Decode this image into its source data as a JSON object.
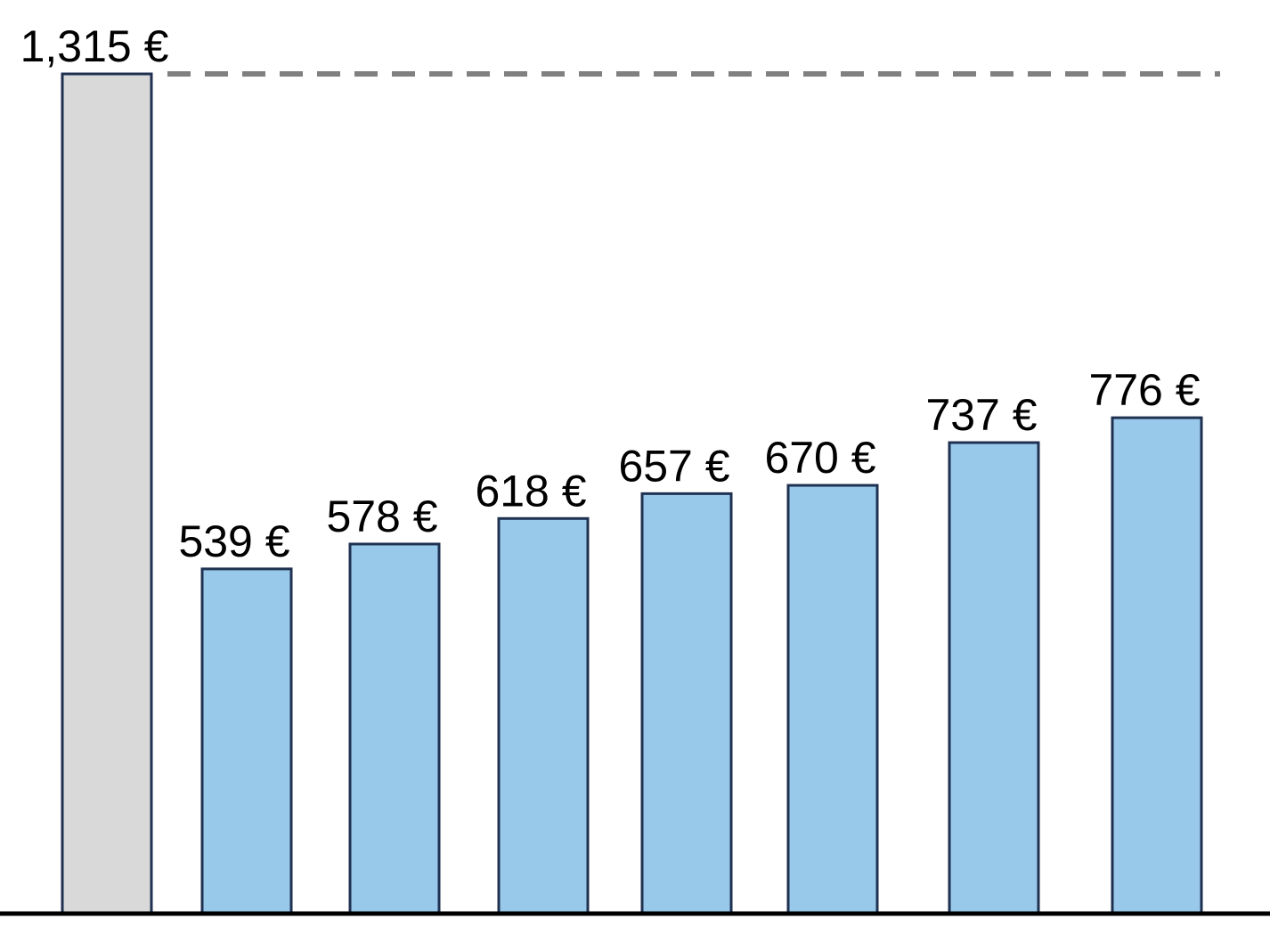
{
  "chart_data": {
    "type": "bar",
    "title": "",
    "xlabel": "",
    "ylabel": "",
    "ylim": [
      0,
      1315
    ],
    "grid": false,
    "legend": "none",
    "categories": [
      "",
      "",
      "",
      "",
      "",
      "",
      "",
      ""
    ],
    "values": [
      1315,
      539,
      578,
      618,
      657,
      670,
      737,
      776
    ],
    "labels": [
      "1,315 €",
      "539 €",
      "578 €",
      "618 €",
      "657 €",
      "670 €",
      "737 €",
      "776 €"
    ],
    "reference_line": {
      "value": 1315,
      "style": "dashed",
      "color": "#808080"
    },
    "colors": {
      "highlight": "#d9d9d9",
      "bars": "#99c9ea",
      "outline": "#1f3151",
      "baseline": "#000000"
    },
    "highlight_index": 0
  }
}
